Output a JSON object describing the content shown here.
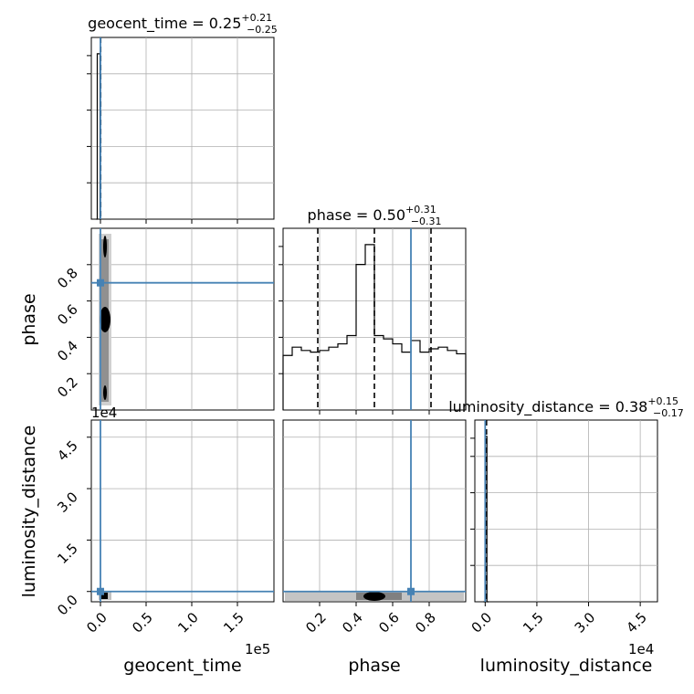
{
  "chart_data": {
    "type": "corner",
    "parameters": [
      "geocent_time",
      "phase",
      "luminosity_distance"
    ],
    "axis_labels": {
      "geocent_time": "geocent_time",
      "phase": "phase",
      "luminosity_distance": "luminosity_distance"
    },
    "titles": {
      "geocent_time": {
        "name": "geocent_time",
        "median": "0.25",
        "plus": "+0.21",
        "minus": "−0.25"
      },
      "phase": {
        "name": "phase",
        "median": "0.50",
        "plus": "+0.31",
        "minus": "−0.31"
      },
      "luminosity_distance": {
        "name": "luminosity_distance",
        "median": "0.38",
        "plus": "+0.15",
        "minus": "−0.17"
      }
    },
    "offsets": {
      "geocent_time_x": "1e5",
      "luminosity_distance_y": "1e4",
      "luminosity_distance_x": "1e4"
    },
    "truths": {
      "geocent_time": 0.0,
      "phase": 0.7,
      "luminosity_distance": 0.0
    },
    "ranges": {
      "geocent_time": [
        -0.1,
        1.9
      ],
      "phase": [
        0.0,
        1.0
      ],
      "luminosity_distance": [
        -0.3,
        5.0
      ]
    },
    "ticks": {
      "geocent_time": [
        "0.0",
        "0.5",
        "1.0",
        "1.5"
      ],
      "phase_x": [
        "0.2",
        "0.4",
        "0.6",
        "0.8"
      ],
      "phase_y": [
        "0.2",
        "0.4",
        "0.6",
        "0.8"
      ],
      "luminosity_distance_x": [
        "0.0",
        "1.5",
        "3.0",
        "4.5"
      ],
      "luminosity_distance_y": [
        "0.0",
        "1.5",
        "3.0",
        "4.5"
      ]
    },
    "phase_histogram": {
      "bin_edges": [
        0.0,
        0.05,
        0.1,
        0.15,
        0.2,
        0.25,
        0.3,
        0.35,
        0.4,
        0.45,
        0.5,
        0.55,
        0.6,
        0.65,
        0.7,
        0.75,
        0.8,
        0.85,
        0.9,
        0.95,
        1.0
      ],
      "counts": [
        0.33,
        0.38,
        0.36,
        0.35,
        0.36,
        0.38,
        0.4,
        0.45,
        0.88,
        1.0,
        0.45,
        0.43,
        0.4,
        0.35,
        0.42,
        0.35,
        0.37,
        0.38,
        0.36,
        0.34
      ],
      "quantiles": [
        0.19,
        0.5,
        0.81
      ]
    },
    "geocent_time_histogram": {
      "bin_edges": [
        -0.045,
        -0.035,
        -0.025,
        -0.015,
        -0.005,
        0.005
      ],
      "counts": [
        0.0,
        1.0,
        1.0,
        1.0,
        0.0
      ],
      "quantiles": [
        0.0025,
        0.0025
      ]
    },
    "luminosity_distance_histogram": {
      "bin_edges": [
        -0.05,
        0.0,
        0.05,
        0.1
      ],
      "counts": [
        0.0,
        1.0,
        0.0
      ],
      "quantiles": [
        0.038,
        0.038
      ]
    },
    "colors": {
      "truth": "#4682b4",
      "hist": "#000000",
      "grid": "#b0b0b0",
      "contour_outer": "#cccccc",
      "contour_mid": "#888888",
      "contour_inner": "#000000"
    },
    "grid": true
  }
}
